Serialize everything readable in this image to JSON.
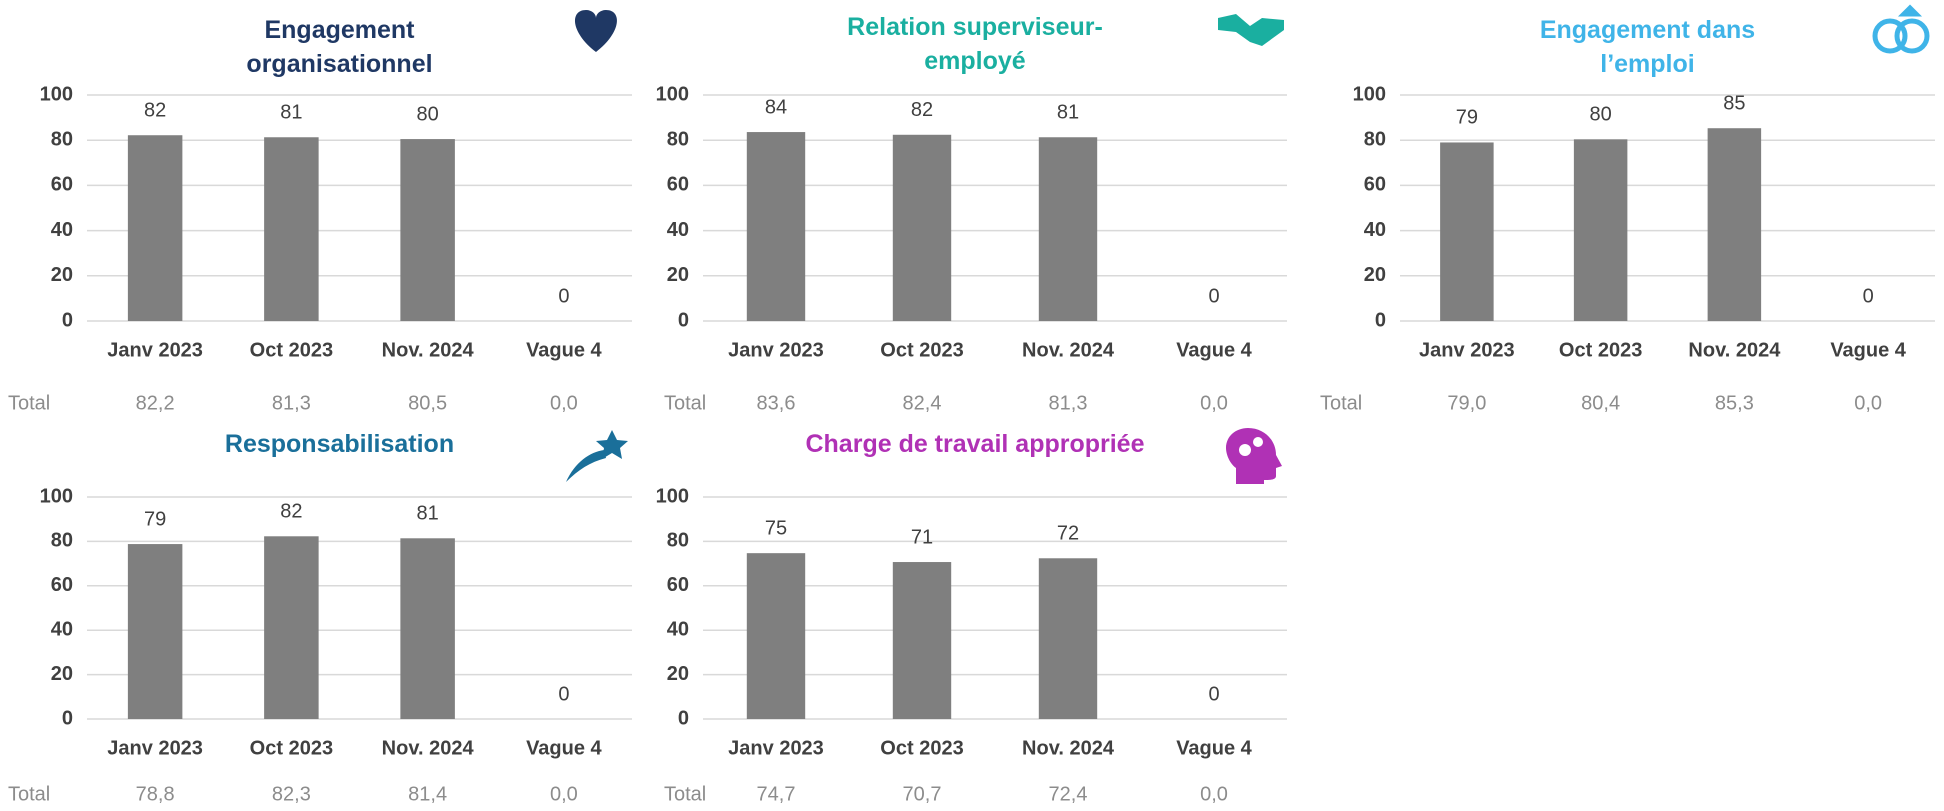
{
  "chart_data": [
    {
      "type": "bar",
      "title": "Engagement organisationnel",
      "title_color": "#1f3864",
      "categories": [
        "Janv 2023",
        "Oct 2023",
        "Nov. 2024",
        "Vague 4"
      ],
      "values": [
        82.2,
        81.3,
        80.5,
        0
      ],
      "value_labels": [
        "82",
        "81",
        "80",
        "0"
      ],
      "color": "#7f7f7f",
      "total_label": "Total",
      "totals": [
        "82,2",
        "81,3",
        "80,5",
        "0,0"
      ],
      "ylim": [
        0,
        100
      ],
      "yticks": [
        0,
        20,
        40,
        60,
        80,
        100
      ],
      "grid": true
    },
    {
      "type": "bar",
      "title": "Relation superviseur-employé",
      "title_color": "#1aafa0",
      "categories": [
        "Janv 2023",
        "Oct 2023",
        "Nov. 2024",
        "Vague 4"
      ],
      "values": [
        83.6,
        82.4,
        81.3,
        0
      ],
      "value_labels": [
        "84",
        "82",
        "81",
        "0"
      ],
      "color": "#7f7f7f",
      "total_label": "Total",
      "totals": [
        "83,6",
        "82,4",
        "81,3",
        "0,0"
      ],
      "ylim": [
        0,
        100
      ],
      "yticks": [
        0,
        20,
        40,
        60,
        80,
        100
      ],
      "grid": true
    },
    {
      "type": "bar",
      "title": "Engagement dans l’emploi",
      "title_color": "#3fb4e8",
      "categories": [
        "Janv 2023",
        "Oct 2023",
        "Nov. 2024",
        "Vague 4"
      ],
      "values": [
        79.0,
        80.4,
        85.3,
        0
      ],
      "value_labels": [
        "79",
        "80",
        "85",
        "0"
      ],
      "color": "#7f7f7f",
      "total_label": "Total",
      "totals": [
        "79,0",
        "80,4",
        "85,3",
        "0,0"
      ],
      "ylim": [
        0,
        100
      ],
      "yticks": [
        0,
        20,
        40,
        60,
        80,
        100
      ],
      "grid": true
    },
    {
      "type": "bar",
      "title": "Responsabilisation",
      "title_color": "#1a6f9a",
      "categories": [
        "Janv 2023",
        "Oct 2023",
        "Nov. 2024",
        "Vague 4"
      ],
      "values": [
        78.8,
        82.3,
        81.4,
        0
      ],
      "value_labels": [
        "79",
        "82",
        "81",
        "0"
      ],
      "color": "#7f7f7f",
      "total_label": "Total",
      "totals": [
        "78,8",
        "82,3",
        "81,4",
        "0,0"
      ],
      "ylim": [
        0,
        100
      ],
      "yticks": [
        0,
        20,
        40,
        60,
        80,
        100
      ],
      "grid": true
    },
    {
      "type": "bar",
      "title": "Charge de travail appropriée",
      "title_color": "#b031b5",
      "categories": [
        "Janv 2023",
        "Oct 2023",
        "Nov. 2024",
        "Vague 4"
      ],
      "values": [
        74.7,
        70.7,
        72.4,
        0
      ],
      "value_labels": [
        "75",
        "71",
        "72",
        "0"
      ],
      "color": "#7f7f7f",
      "total_label": "Total",
      "totals": [
        "74,7",
        "70,7",
        "72,4",
        "0,0"
      ],
      "ylim": [
        0,
        100
      ],
      "yticks": [
        0,
        20,
        40,
        60,
        80,
        100
      ],
      "grid": true
    }
  ]
}
